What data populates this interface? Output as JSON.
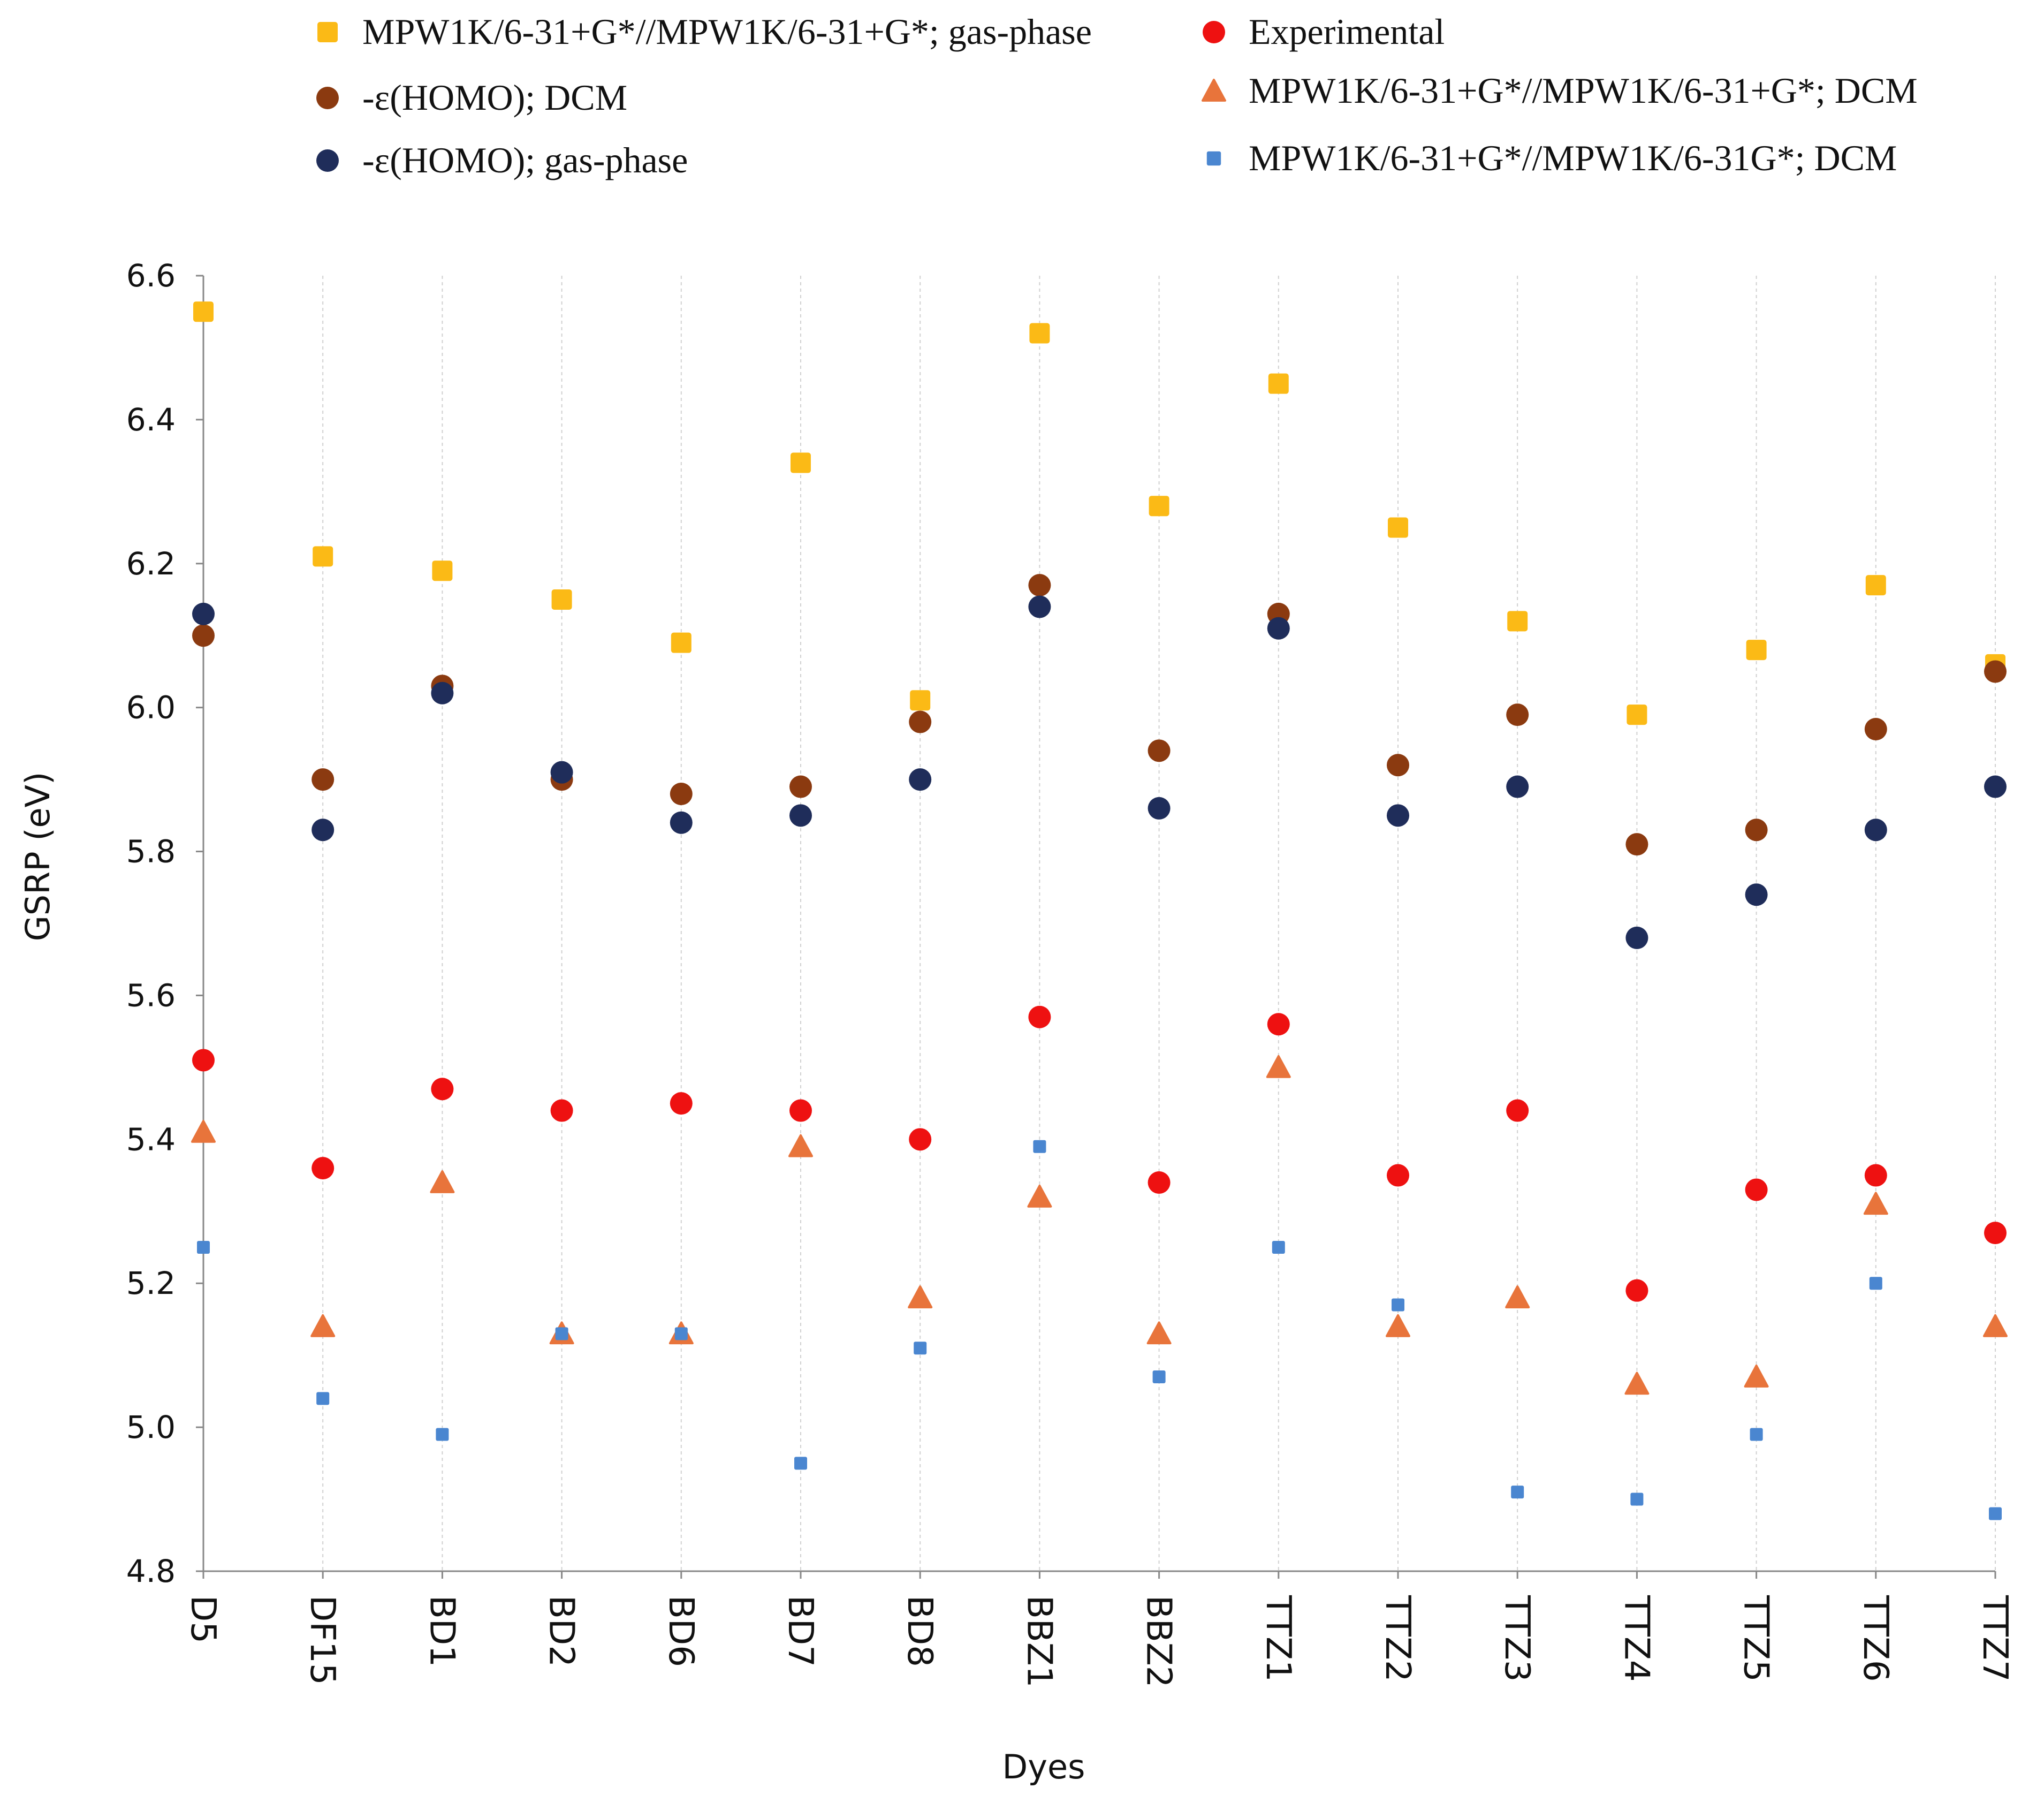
{
  "chart_data": {
    "type": "scatter",
    "xlabel": "Dyes",
    "ylabel": "GSRP (eV)",
    "ylim": [
      4.8,
      6.6
    ],
    "yticks": [
      "4.8",
      "5.0",
      "5.2",
      "5.4",
      "5.6",
      "5.8",
      "6.0",
      "6.2",
      "6.4",
      "6.6"
    ],
    "grid": "vertical dashed",
    "legend_position": "top",
    "categories": [
      "D5",
      "DF15",
      "BD1",
      "BD2",
      "BD6",
      "BD7",
      "BD8",
      "BBZ1",
      "BBZ2",
      "TTZ1",
      "TTZ2",
      "TTZ3",
      "TTZ4",
      "TTZ5",
      "TTZ6",
      "TTZ7"
    ],
    "series": [
      {
        "name": "MPW1K/6-31+G*//MPW1K/6-31+G*; gas-phase",
        "marker": "square",
        "color": "#FBBA16",
        "values": [
          6.55,
          6.21,
          6.19,
          6.15,
          6.09,
          6.34,
          6.01,
          6.52,
          6.28,
          6.45,
          6.25,
          6.12,
          5.99,
          6.08,
          6.17,
          6.06
        ]
      },
      {
        "name": "-ε(HOMO); DCM",
        "marker": "circle",
        "color": "#8B3A10",
        "values": [
          6.1,
          5.9,
          6.03,
          5.9,
          5.88,
          5.89,
          5.98,
          6.17,
          5.94,
          6.13,
          5.92,
          5.99,
          5.81,
          5.83,
          5.97,
          6.05
        ]
      },
      {
        "name": "-ε(HOMO); gas-phase",
        "marker": "circle",
        "color": "#1F2D5A",
        "values": [
          6.13,
          5.83,
          6.02,
          5.91,
          5.84,
          5.85,
          5.9,
          6.14,
          5.86,
          6.11,
          5.85,
          5.89,
          5.68,
          5.74,
          5.83,
          5.89
        ]
      },
      {
        "name": "Experimental",
        "marker": "circle",
        "color": "#EE1111",
        "values": [
          5.51,
          5.36,
          5.47,
          5.44,
          5.45,
          5.44,
          5.4,
          5.57,
          5.34,
          5.56,
          5.35,
          5.44,
          5.19,
          5.33,
          5.35,
          5.27
        ]
      },
      {
        "name": "MPW1K/6-31+G*//MPW1K/6-31+G*; DCM",
        "marker": "triangle",
        "color": "#E8743B",
        "values": [
          5.41,
          5.14,
          5.34,
          5.13,
          5.13,
          5.39,
          5.18,
          5.32,
          5.13,
          5.5,
          5.14,
          5.18,
          5.06,
          5.07,
          5.31,
          5.14
        ]
      },
      {
        "name": "MPW1K/6-31+G*//MPW1K/6-31G*; DCM",
        "marker": "square-small",
        "color": "#4A86D0",
        "values": [
          5.25,
          5.04,
          4.99,
          5.13,
          5.13,
          4.95,
          5.11,
          5.39,
          5.07,
          5.25,
          5.17,
          4.91,
          4.9,
          4.99,
          5.2,
          4.88
        ]
      }
    ]
  }
}
